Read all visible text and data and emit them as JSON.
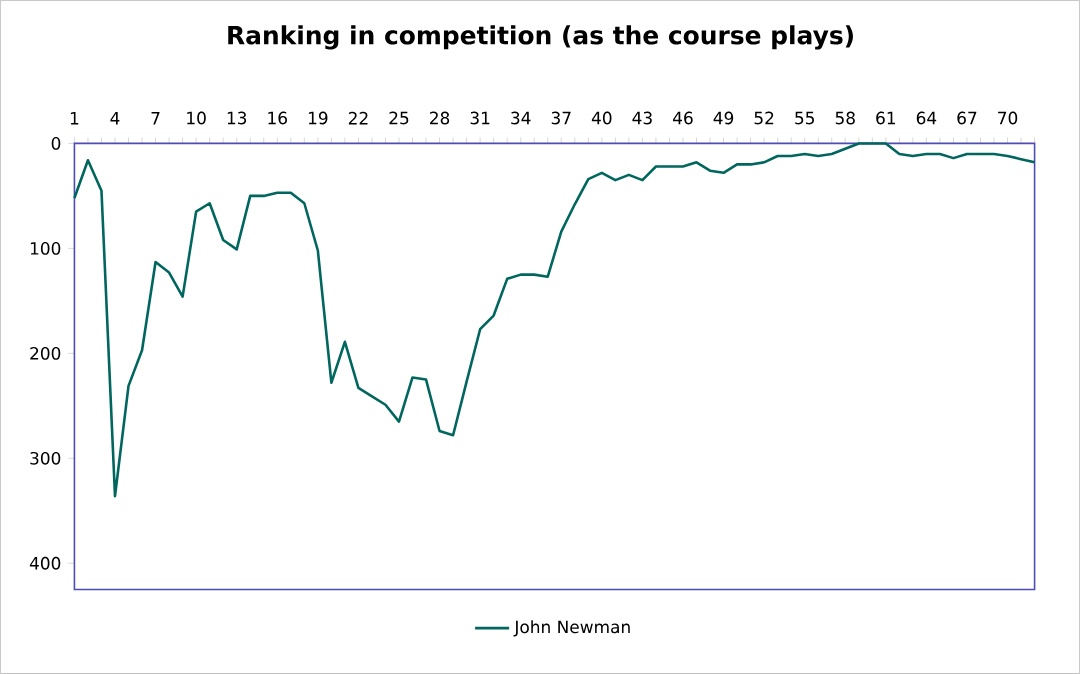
{
  "chart_data": {
    "type": "line",
    "title": "Ranking in competition (as the course plays)",
    "categories": [
      "1",
      null,
      null,
      "4",
      null,
      null,
      "7",
      null,
      null,
      "10",
      null,
      null,
      "13",
      null,
      null,
      "16",
      null,
      null,
      "19",
      null,
      null,
      "22",
      null,
      null,
      "25",
      null,
      null,
      "28",
      null,
      null,
      "31",
      null,
      null,
      "34",
      null,
      null,
      "37",
      null,
      null,
      "40",
      null,
      null,
      "43",
      null,
      null,
      "46",
      null,
      null,
      "49",
      null,
      null,
      "52",
      null,
      null,
      "55",
      null,
      null,
      "58",
      null,
      null,
      "61",
      null,
      null,
      "64",
      null,
      null,
      "67",
      null,
      null,
      "70",
      null,
      null
    ],
    "series": [
      {
        "name": "John Newman",
        "color": "#00665e",
        "values": [
          52,
          16,
          45,
          336,
          231,
          197,
          113,
          123,
          146,
          65,
          57,
          92,
          101,
          50,
          50,
          47,
          47,
          57,
          102,
          228,
          189,
          233,
          241,
          249,
          265,
          223,
          225,
          274,
          278,
          227,
          177,
          164,
          129,
          125,
          125,
          127,
          84,
          58,
          34,
          28,
          35,
          30,
          35,
          22,
          22,
          22,
          18,
          26,
          28,
          20,
          20,
          18,
          12,
          12,
          10,
          12,
          10,
          5,
          0,
          0,
          0,
          10,
          12,
          10,
          10,
          14,
          10,
          10,
          10,
          12,
          15,
          18
        ]
      }
    ],
    "ylim": [
      425,
      0
    ],
    "yticks": [
      0,
      100,
      200,
      300,
      400
    ],
    "legend": "bottom"
  }
}
